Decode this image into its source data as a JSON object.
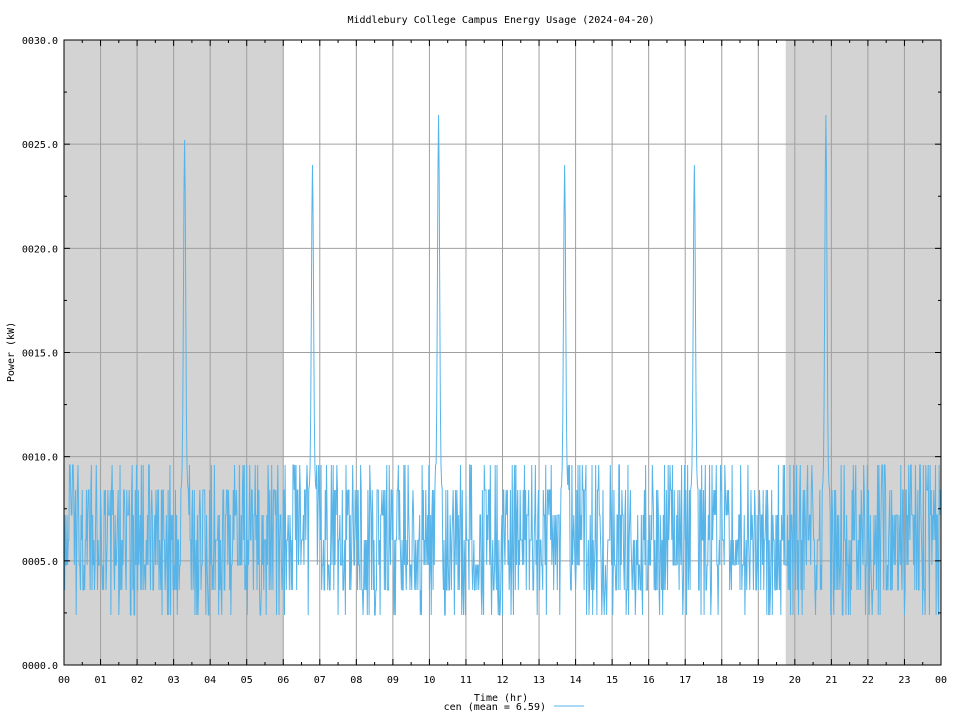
{
  "chart_data": {
    "type": "line",
    "title": "Middlebury College Campus Energy Usage (2024-04-20)",
    "xlabel": "Time (hr)",
    "ylabel": "Power (kW)",
    "xlim": [
      0,
      24
    ],
    "ylim": [
      0,
      30
    ],
    "grid": true,
    "legend_position": "bottom-center",
    "night_shading_hours": [
      [
        0,
        6
      ],
      [
        19.75,
        24
      ]
    ],
    "x_ticks": [
      "00",
      "01",
      "02",
      "03",
      "04",
      "05",
      "06",
      "07",
      "08",
      "09",
      "10",
      "11",
      "12",
      "13",
      "14",
      "15",
      "16",
      "17",
      "18",
      "19",
      "20",
      "21",
      "22",
      "23",
      "00"
    ],
    "y_ticks": [
      "0000.0",
      "0005.0",
      "0010.0",
      "0015.0",
      "0020.0",
      "0025.0",
      "0030.0"
    ],
    "y_tick_values": [
      0,
      5,
      10,
      15,
      20,
      25,
      30
    ],
    "series": [
      {
        "name": "cen",
        "legend_label": "cen (mean = 6.59)",
        "color": "#56b4e9",
        "mean": 6.59,
        "baseline_range": [
          2.4,
          9.6
        ],
        "spikes": [
          {
            "x": 3.3,
            "y": 25.2
          },
          {
            "x": 6.8,
            "y": 24.0
          },
          {
            "x": 10.25,
            "y": 26.4
          },
          {
            "x": 13.7,
            "y": 24.0
          },
          {
            "x": 17.25,
            "y": 24.0
          },
          {
            "x": 20.85,
            "y": 26.4
          }
        ]
      }
    ]
  },
  "colors": {
    "night_shade": "#d3d3d3",
    "grid": "#a0a0a0",
    "axis": "#000000"
  }
}
